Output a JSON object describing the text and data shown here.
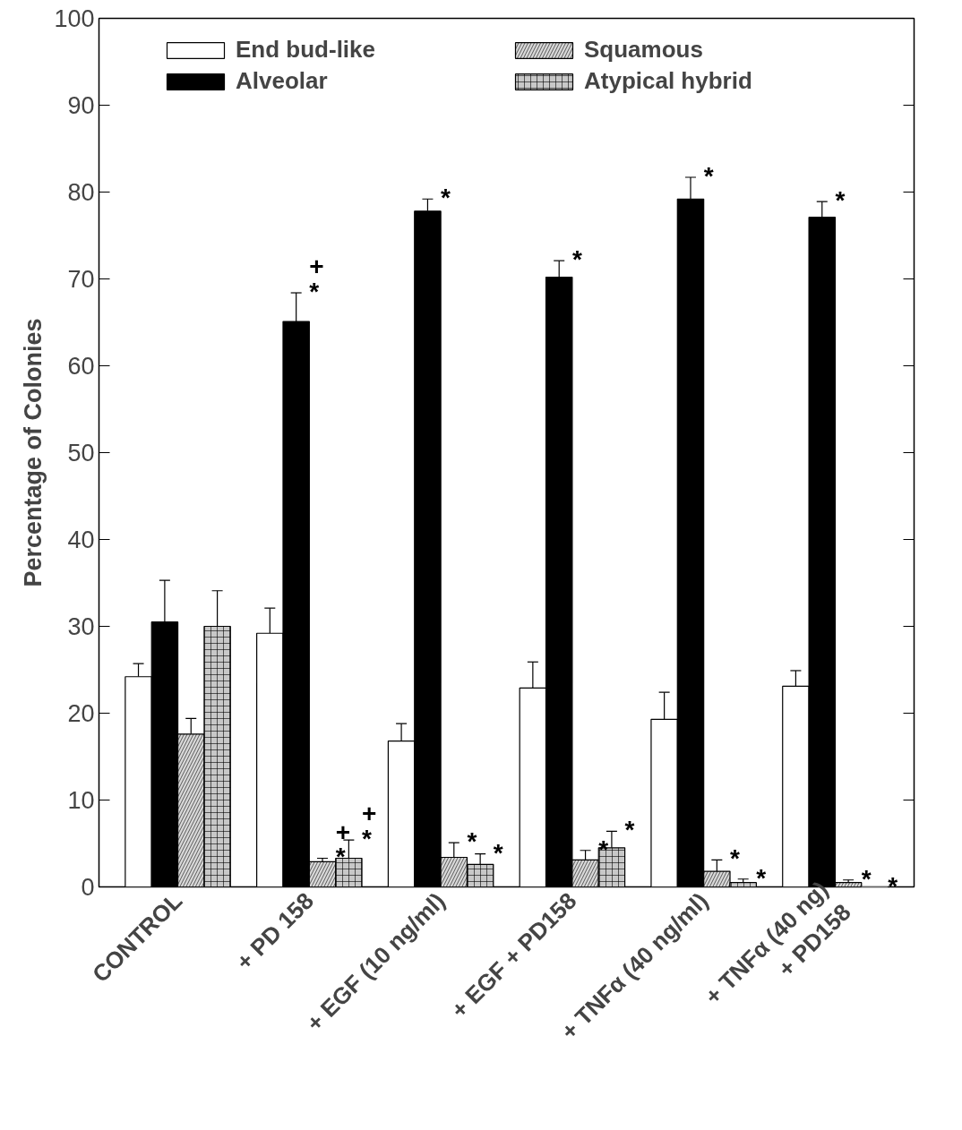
{
  "chart_data": {
    "type": "bar",
    "ylabel": "Percentage of Colonies",
    "categories": [
      "CONTROL",
      "+ PD 158",
      "+ EGF (10 ng/ml)",
      "+ EGF + PD158",
      "+ TNFα (40 ng/ml)",
      "+ TNFα (40 ng)\n+ PD158"
    ],
    "series": [
      {
        "name": "End bud-like",
        "color": "#ffffff",
        "values": [
          24.2,
          29.2,
          16.8,
          22.9,
          19.3,
          23.1
        ],
        "errors": [
          [
            24.2,
            25.7
          ],
          [
            29.2,
            32.1
          ],
          [
            16.8,
            18.8
          ],
          [
            22.9,
            25.9
          ],
          [
            19.3,
            22.4
          ],
          [
            23.1,
            24.9
          ]
        ]
      },
      {
        "name": "Alveolar",
        "color": "#000000",
        "values": [
          30.5,
          65.1,
          77.8,
          70.2,
          79.2,
          77.1
        ],
        "errors": [
          [
            30.5,
            35.3
          ],
          [
            65.1,
            68.4
          ],
          [
            77.8,
            79.2
          ],
          [
            70.2,
            72.1
          ],
          [
            79.2,
            81.7
          ],
          [
            77.1,
            78.9
          ]
        ],
        "value_labels": [
          null,
          "+\n*",
          "*",
          "*",
          "*",
          "*"
        ]
      },
      {
        "name": "Squamous",
        "color": "#d9d9d9",
        "values": [
          17.6,
          2.9,
          3.4,
          3.1,
          1.8,
          0.5
        ],
        "errors": [
          [
            17.6,
            19.4
          ],
          [
            2.9,
            3.3
          ],
          [
            3.4,
            5.1
          ],
          [
            3.1,
            4.2
          ],
          [
            1.8,
            3.1
          ],
          [
            0.5,
            0.8
          ]
        ],
        "value_labels": [
          null,
          "+\n*",
          "*",
          "*",
          "*",
          "*"
        ]
      },
      {
        "name": "Atypical hybrid",
        "color": "#c8c8c8",
        "values": [
          30.0,
          3.3,
          2.6,
          4.5,
          0.5,
          0
        ],
        "errors": [
          [
            30.0,
            34.1
          ],
          [
            3.3,
            5.4
          ],
          [
            2.6,
            3.8
          ],
          [
            4.5,
            6.4
          ],
          [
            0.5,
            0.9
          ],
          null
        ],
        "value_labels": [
          null,
          "+\n*",
          "*",
          "*",
          "*",
          "*"
        ]
      }
    ],
    "ylim": [
      0,
      100
    ],
    "yticks": [
      0,
      10,
      20,
      30,
      40,
      50,
      60,
      70,
      80,
      90,
      100
    ],
    "grid": false,
    "legend": "top"
  }
}
